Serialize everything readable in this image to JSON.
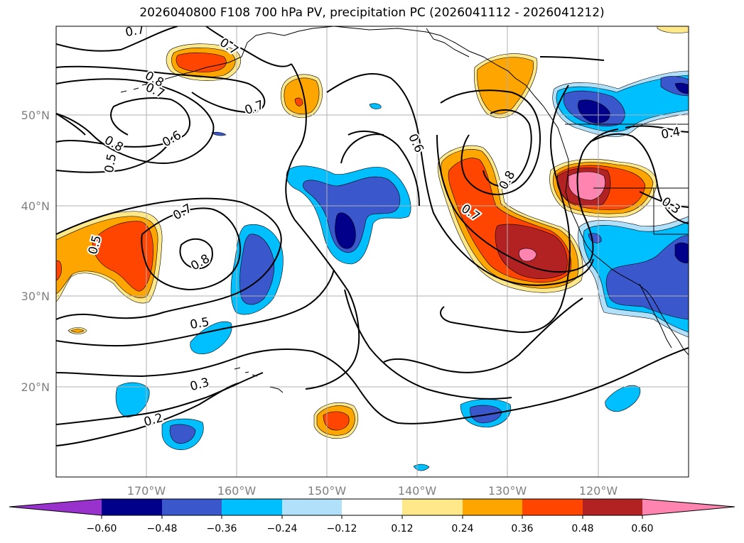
{
  "title": "2026040800 F108 700 hPa PV, precipitation PC (2026041112 - 2026041212)",
  "longitude_labels": [
    "170°W",
    "160°W",
    "150°W",
    "140°W",
    "130°W",
    "120°W"
  ],
  "latitude_labels": [
    "50°N",
    "40°N",
    "30°N",
    "20°N"
  ],
  "contour_labels": [
    "0.7",
    "0.7",
    "0.8",
    "0.7",
    "0.8",
    "0.6",
    "0.5",
    "0.7",
    "0.5",
    "0.7",
    "0.8",
    "0.5",
    "0.3",
    "0.2",
    "0.6",
    "0.7",
    "0.8",
    "0.4",
    "0.3"
  ],
  "colorbar": {
    "tick_labels": [
      "−0.60",
      "−0.48",
      "−0.36",
      "−0.24",
      "−0.12",
      "0.12",
      "0.24",
      "0.36",
      "0.48",
      "0.60"
    ],
    "colors": [
      "#9932cc",
      "#00008b",
      "#3a57cc",
      "#00bfff",
      "#b0e0fa",
      "#ffffff",
      "#ffe88a",
      "#ffa500",
      "#ff4500",
      "#b22222",
      "#ff85b0"
    ]
  },
  "shading_colors": {
    "neg1": "#b0e0fa",
    "neg2": "#00bfff",
    "neg3": "#3a57cc",
    "neg4": "#00008b",
    "pos1": "#ffe88a",
    "pos2": "#ffa500",
    "pos3": "#ff4500",
    "pos4": "#b22222",
    "pos5": "#ff85b0"
  }
}
